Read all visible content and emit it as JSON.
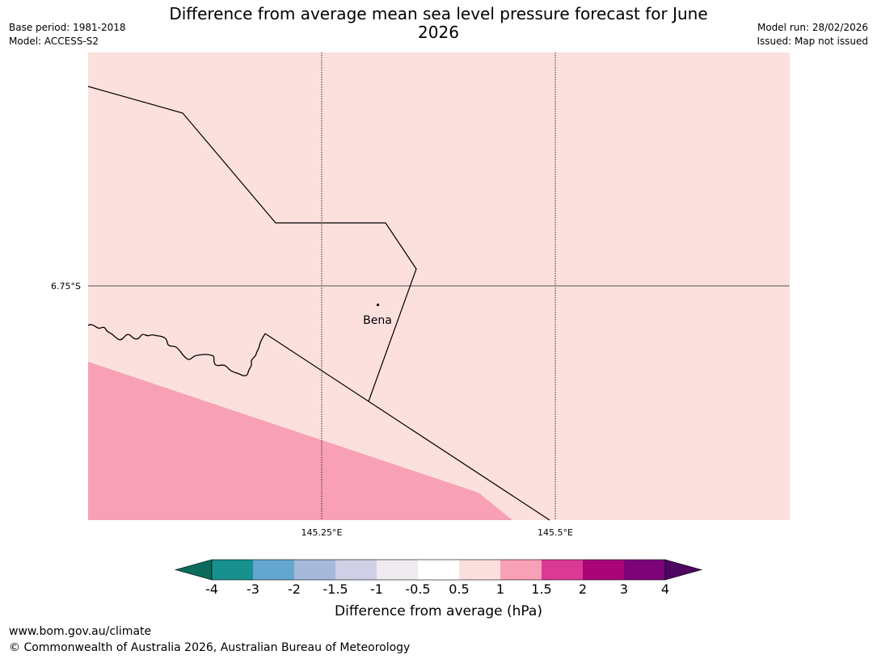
{
  "title": "Difference from average mean sea level pressure forecast for June 2026",
  "meta": {
    "base_period": "Base period: 1981-2018",
    "model": "Model: ACCESS-S2",
    "model_run": "Model run: 28/02/2026",
    "issued": "Issued: Map not issued"
  },
  "map": {
    "background_category": "0.5 to 1",
    "fill_colors": {
      "light_pink": "#fce0de",
      "pink": "#f8a0b6"
    },
    "gridlines": {
      "lat_labels": [
        "6.75°S"
      ],
      "lon_labels": [
        "145.25°E",
        "145.5°E"
      ]
    },
    "place": {
      "name": "Bena"
    }
  },
  "colorbar": {
    "ticks": [
      "-4",
      "-3",
      "-2",
      "-1.5",
      "-1",
      "-0.5",
      "0.5",
      "1",
      "1.5",
      "2",
      "3",
      "4"
    ],
    "colors": [
      "#18908e",
      "#63a7d0",
      "#a6b9db",
      "#cfd0e6",
      "#eeebf1",
      "#ffffff",
      "#fce0de",
      "#f8a0b6",
      "#db3a94",
      "#ab0478",
      "#7c0378"
    ],
    "under_color": "#0a6b5c",
    "over_color": "#4e0662",
    "label": "Difference from average (hPa)"
  },
  "footer": {
    "url": "www.bom.gov.au/climate",
    "copyright": "© Commonwealth of Australia 2026, Australian Bureau of Meteorology"
  }
}
